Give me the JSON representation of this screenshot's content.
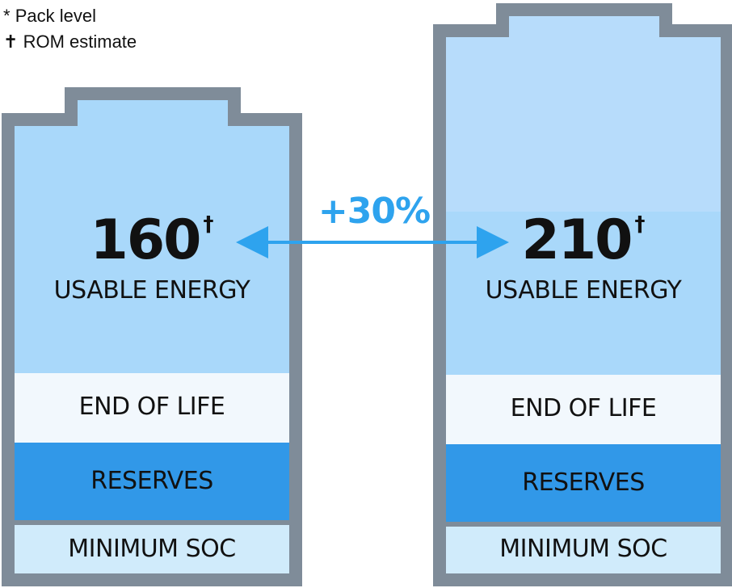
{
  "legend": [
    {
      "symbol": "*",
      "text": "Pack level"
    },
    {
      "symbol": "✝",
      "text": "ROM estimate"
    }
  ],
  "comparison": {
    "delta_label": "+30%"
  },
  "batteries": [
    {
      "value": "160",
      "marker": "†",
      "value_label": "USABLE ENERGY",
      "segments": {
        "end_of_life": "END OF LIFE",
        "reserves": "RESERVES",
        "minimum_soc": "MINIMUM SOC"
      }
    },
    {
      "value": "210",
      "marker": "†",
      "value_label": "USABLE ENERGY",
      "segments": {
        "end_of_life": "END OF LIFE",
        "reserves": "RESERVES",
        "minimum_soc": "MINIMUM SOC"
      }
    }
  ],
  "colors": {
    "casing": "#7f8c99",
    "usable_fill": "#a9d8fa",
    "headroom_fill": "#b7dcfb",
    "end_of_life_fill": "#f2f8fd",
    "reserves_fill": "#3198e8",
    "minimum_soc_fill": "#d0ebfb",
    "arrow": "#2ea3ee"
  }
}
